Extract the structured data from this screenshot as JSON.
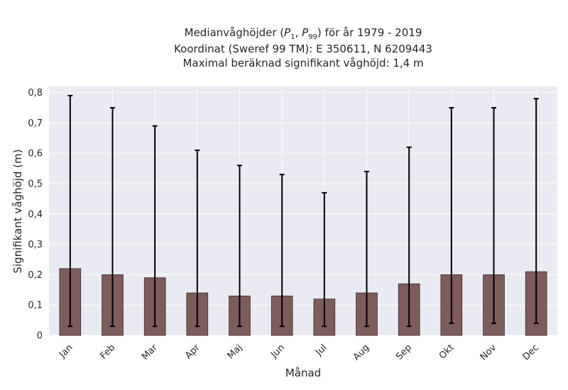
{
  "chart_data": {
    "type": "bar",
    "title_lines": [
      "Medianvåghöjder (P1, P99) för år 1979 - 2019",
      "Koordinat (Sweref 99 TM): E 350611, N 6209443",
      "Maximal beräknad signifikant våghöjd: 1,4 m"
    ],
    "xlabel": "Månad",
    "ylabel": "Signifikant våghöjd (m)",
    "categories": [
      "Jan",
      "Feb",
      "Mar",
      "Apr",
      "Maj",
      "Jun",
      "Jul",
      "Aug",
      "Sep",
      "Okt",
      "Nov",
      "Dec"
    ],
    "values": [
      0.22,
      0.2,
      0.19,
      0.14,
      0.13,
      0.13,
      0.12,
      0.14,
      0.17,
      0.2,
      0.2,
      0.21
    ],
    "p1": [
      0.03,
      0.03,
      0.03,
      0.03,
      0.03,
      0.03,
      0.03,
      0.03,
      0.03,
      0.04,
      0.04,
      0.04
    ],
    "p99": [
      0.79,
      0.75,
      0.69,
      0.61,
      0.56,
      0.53,
      0.47,
      0.54,
      0.62,
      0.75,
      0.75,
      0.78
    ],
    "ylim": [
      0,
      0.82
    ],
    "yticks": [
      0,
      0.1,
      0.2,
      0.3,
      0.4,
      0.5,
      0.6,
      0.7,
      0.8
    ],
    "ytick_labels": [
      "0",
      "0,1",
      "0,2",
      "0,3",
      "0,4",
      "0,5",
      "0,6",
      "0,7",
      "0,8"
    ],
    "grid": true,
    "colors": {
      "bar_fill": "#7d5c5c",
      "bar_edge": "#3d2b2b",
      "error_bar": "#000000",
      "plot_background": "#eaeaf2",
      "grid": "#ffffff"
    }
  }
}
